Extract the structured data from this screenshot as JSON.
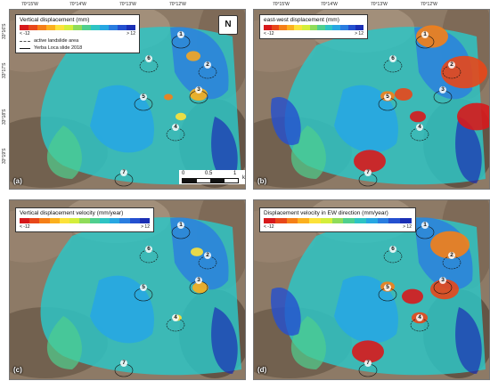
{
  "colorbar": [
    "#d7191c",
    "#e8471a",
    "#f57f17",
    "#fbb01e",
    "#fce23a",
    "#d4ee3b",
    "#8fdc5a",
    "#4fcf8f",
    "#2ec4c4",
    "#27a7e2",
    "#2a7de0",
    "#2450d0",
    "#1b2fb5"
  ],
  "coords_top": [
    "70°15'W",
    "70°14'W",
    "70°13'W",
    "70°12'W"
  ],
  "coords_left": [
    "33°16'S",
    "33°17'S",
    "33°18'S",
    "33°19'S"
  ],
  "panels": [
    {
      "id": "a",
      "label": "(a)",
      "legend_title": "Vertical displacement (mm)",
      "min_label": "< -12",
      "max_label": "> 12",
      "legend_lines": [
        {
          "text": "active landslide area",
          "style": "dashed"
        },
        {
          "text": "Yerba Loca slide 2018",
          "style": "solid"
        }
      ],
      "north_arrow": "N",
      "scale": {
        "ticks": [
          "0",
          "0.5",
          "1"
        ],
        "unit": "km"
      },
      "sites": [
        "1",
        "2",
        "3",
        "4",
        "5",
        "6",
        "7"
      ]
    },
    {
      "id": "b",
      "label": "(b)",
      "legend_title": "east-west displacement (mm)",
      "min_label": "< -12",
      "max_label": "> 12",
      "sites": [
        "1",
        "2",
        "3",
        "4",
        "5",
        "6",
        "7"
      ]
    },
    {
      "id": "c",
      "label": "(c)",
      "legend_title": "Vertical displacement velocity (mm/year)",
      "min_label": "< -12",
      "max_label": "> 12",
      "sites": [
        "1",
        "2",
        "3",
        "4",
        "5",
        "6",
        "7"
      ]
    },
    {
      "id": "d",
      "label": "(d)",
      "legend_title": "Displacement velocity in EW direction (mm/year)",
      "min_label": "< -12",
      "max_label": "> 12",
      "sites": [
        "1",
        "2",
        "3",
        "4",
        "5",
        "6",
        "7"
      ]
    }
  ]
}
